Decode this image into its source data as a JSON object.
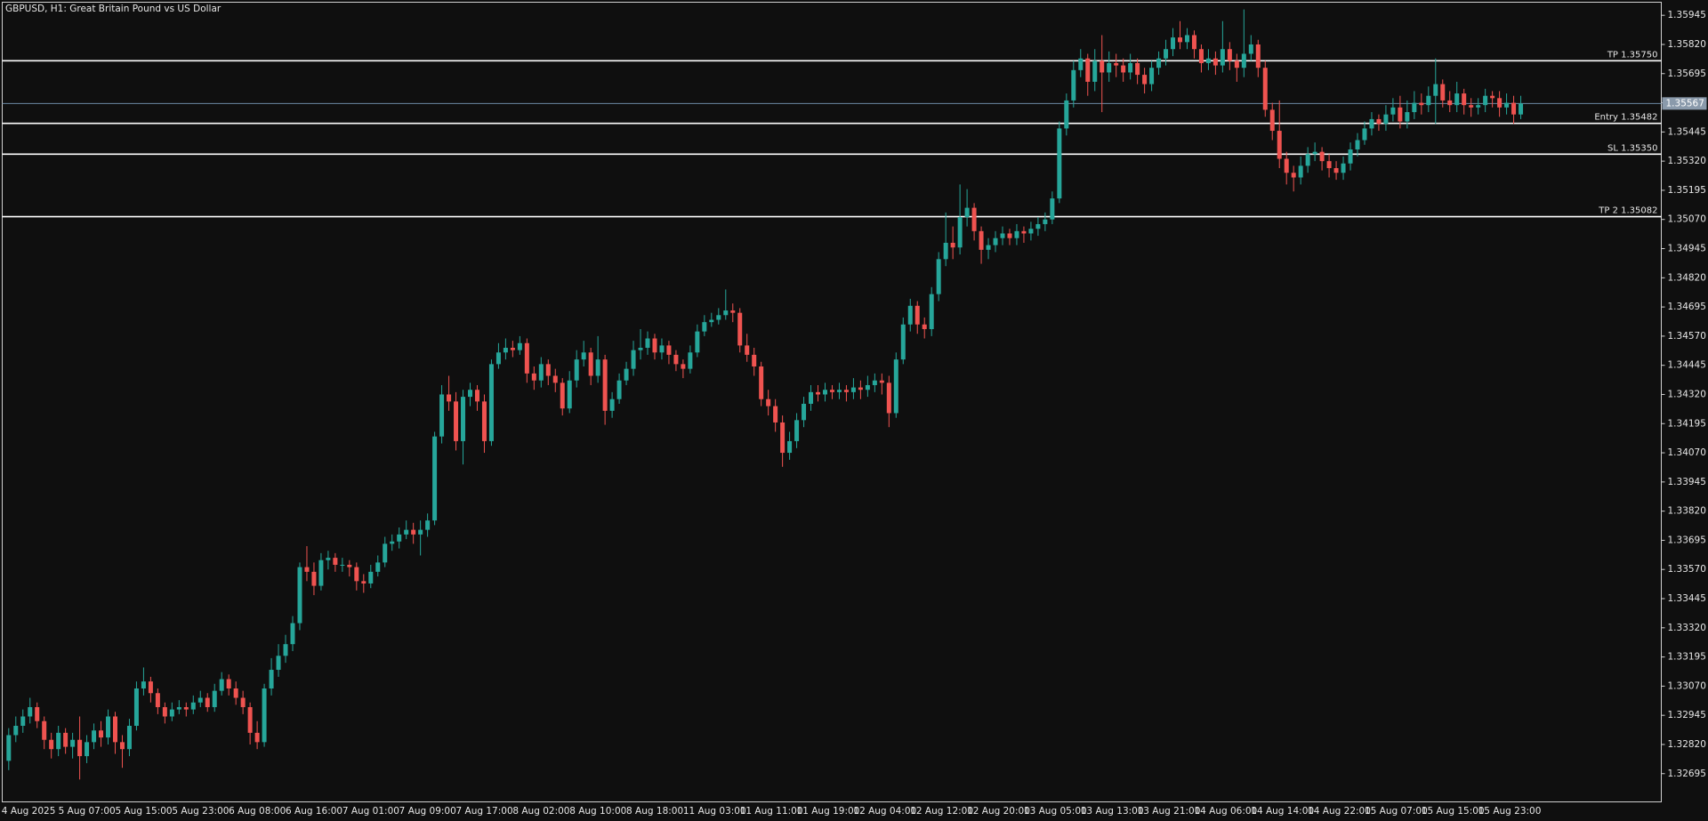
{
  "chart_data": {
    "type": "candlestick",
    "title": "GBPUSD, H1:  Great Britain Pound vs US Dollar",
    "up_color": "#26a69a",
    "down_color": "#ef5350",
    "x": [
      "4 Aug 2025",
      null,
      null,
      null,
      null,
      null,
      null,
      null,
      "5 Aug 07:00",
      null,
      null,
      null,
      null,
      null,
      null,
      null,
      "5 Aug 15:00",
      null,
      null,
      null,
      null,
      null,
      null,
      null,
      "5 Aug 23:00",
      null,
      null,
      null,
      null,
      null,
      null,
      null,
      "6 Aug 08:00",
      null,
      null,
      null,
      null,
      null,
      null,
      null,
      "6 Aug 16:00",
      null,
      null,
      null,
      null,
      null,
      null,
      null,
      "7 Aug 01:00",
      null,
      null,
      null,
      null,
      null,
      null,
      null,
      "7 Aug 09:00",
      null,
      null,
      null,
      null,
      null,
      null,
      null,
      "7 Aug 17:00",
      null,
      null,
      null,
      null,
      null,
      null,
      null,
      "8 Aug 02:00",
      null,
      null,
      null,
      null,
      null,
      null,
      null,
      "8 Aug 10:00",
      null,
      null,
      null,
      null,
      null,
      null,
      null,
      "8 Aug 18:00",
      null,
      null,
      null,
      null,
      null,
      null,
      null,
      "11 Aug 03:00",
      null,
      null,
      null,
      null,
      null,
      null,
      null,
      "11 Aug 11:00",
      null,
      null,
      null,
      null,
      null,
      null,
      null,
      "11 Aug 19:00",
      null,
      null,
      null,
      null,
      null,
      null,
      null,
      "12 Aug 04:00",
      null,
      null,
      null,
      null,
      null,
      null,
      null,
      "12 Aug 12:00",
      null,
      null,
      null,
      null,
      null,
      null,
      null,
      "12 Aug 20:00",
      null,
      null,
      null,
      null,
      null,
      null,
      null,
      "13 Aug 05:00",
      null,
      null,
      null,
      null,
      null,
      null,
      null,
      "13 Aug 13:00",
      null,
      null,
      null,
      null,
      null,
      null,
      null,
      "13 Aug 21:00",
      null,
      null,
      null,
      null,
      null,
      null,
      null,
      "14 Aug 06:00",
      null,
      null,
      null,
      null,
      null,
      null,
      null,
      "14 Aug 14:00",
      null,
      null,
      null,
      null,
      null,
      null,
      null,
      "14 Aug 22:00",
      null,
      null,
      null,
      null,
      null,
      null,
      null,
      "15 Aug 07:00",
      null,
      null,
      null,
      null,
      null,
      null,
      null,
      "15 Aug 15:00",
      null,
      null,
      null,
      null,
      null,
      null,
      null,
      "15 Aug 23:00",
      null,
      null,
      null,
      null,
      null
    ],
    "open": [
      1.3275,
      1.3286,
      1.329,
      1.3294,
      1.3298,
      1.3292,
      1.3284,
      1.328,
      1.3287,
      1.3281,
      1.3284,
      1.3277,
      1.3283,
      1.3288,
      1.3285,
      1.3294,
      1.3283,
      1.328,
      1.329,
      1.3306,
      1.3309,
      1.3304,
      1.3298,
      1.3294,
      1.3297,
      1.3298,
      1.3297,
      1.33,
      1.3302,
      1.3298,
      1.3305,
      1.331,
      1.3306,
      1.3302,
      1.3298,
      1.3287,
      1.3283,
      1.3306,
      1.3314,
      1.332,
      1.3325,
      1.3334,
      1.3358,
      1.3356,
      1.335,
      1.3361,
      1.3362,
      1.3359,
      1.3359,
      1.3358,
      1.3352,
      1.3351,
      1.3356,
      1.336,
      1.3368,
      1.3369,
      1.3372,
      1.3374,
      1.3372,
      1.3374,
      1.3378,
      1.3414,
      1.3432,
      1.3429,
      1.3412,
      1.3431,
      1.3434,
      1.3429,
      1.3412,
      1.3445,
      1.345,
      1.3452,
      1.3451,
      1.3454,
      1.3441,
      1.3438,
      1.3445,
      1.344,
      1.3437,
      1.3426,
      1.3438,
      1.3447,
      1.345,
      1.344,
      1.3447,
      1.3425,
      1.343,
      1.3438,
      1.3443,
      1.3451,
      1.3452,
      1.3456,
      1.345,
      1.3453,
      1.3449,
      1.3445,
      1.3443,
      1.345,
      1.3459,
      1.3463,
      1.3464,
      1.3466,
      1.3468,
      1.3467,
      1.3453,
      1.3449,
      1.3444,
      1.343,
      1.3427,
      1.342,
      1.3407,
      1.3412,
      1.3421,
      1.3428,
      1.3433,
      1.3432,
      1.3434,
      1.3433,
      1.3434,
      1.3433,
      1.3435,
      1.3434,
      1.3436,
      1.3438,
      1.3437,
      1.3424,
      1.3447,
      1.3462,
      1.347,
      1.3462,
      1.346,
      1.3475,
      1.349,
      1.3497,
      1.3495,
      1.3508,
      1.3512,
      1.3502,
      1.3494,
      1.3496,
      1.3499,
      1.3501,
      1.3499,
      1.3502,
      1.3501,
      1.3503,
      1.3505,
      1.3507,
      1.3516,
      1.3546,
      1.3558,
      1.3571,
      1.3576,
      1.3566,
      1.3575,
      1.357,
      1.3574,
      1.3573,
      1.357,
      1.3574,
      1.3569,
      1.3565,
      1.3572,
      1.3576,
      1.358,
      1.3585,
      1.3583,
      1.3586,
      1.358,
      1.3574,
      1.3576,
      1.3573,
      1.358,
      1.3575,
      1.3572,
      1.3578,
      1.3582,
      1.3572,
      1.3554,
      1.3545,
      1.3533,
      1.3527,
      1.3525,
      1.353,
      1.3535,
      1.3536,
      1.3532,
      1.3529,
      1.3527,
      1.3531,
      1.3537,
      1.3541,
      1.3546,
      1.355,
      1.3548,
      1.3552,
      1.3555,
      1.3549,
      1.3553,
      1.3557,
      1.3556,
      1.356,
      1.3565,
      1.3558,
      1.3556,
      1.3561,
      1.3556,
      1.3555,
      1.3556,
      1.356,
      1.3559,
      1.3555,
      1.3557,
      1.3552
    ],
    "high": [
      1.3289,
      1.3294,
      1.3297,
      1.3302,
      1.33,
      1.3294,
      1.3287,
      1.329,
      1.3289,
      1.3287,
      1.3294,
      1.3286,
      1.3291,
      1.3292,
      1.3297,
      1.3296,
      1.3286,
      1.3293,
      1.3309,
      1.3315,
      1.3311,
      1.3306,
      1.33,
      1.33,
      1.3301,
      1.33,
      1.3303,
      1.3305,
      1.3304,
      1.3308,
      1.3313,
      1.3312,
      1.3309,
      1.3305,
      1.33,
      1.3292,
      1.3308,
      1.3319,
      1.3325,
      1.3329,
      1.3337,
      1.336,
      1.3367,
      1.336,
      1.3364,
      1.3365,
      1.3364,
      1.3362,
      1.3361,
      1.336,
      1.3355,
      1.3359,
      1.3363,
      1.3371,
      1.3372,
      1.3375,
      1.3378,
      1.3377,
      1.3378,
      1.3381,
      1.3416,
      1.3436,
      1.344,
      1.3433,
      1.3434,
      1.3437,
      1.3436,
      1.3432,
      1.3447,
      1.3454,
      1.3456,
      1.3455,
      1.3457,
      1.3456,
      1.3444,
      1.3448,
      1.3447,
      1.3443,
      1.3439,
      1.3442,
      1.3451,
      1.3455,
      1.3452,
      1.3457,
      1.3449,
      1.3433,
      1.3441,
      1.3446,
      1.3455,
      1.346,
      1.3459,
      1.3458,
      1.3456,
      1.3455,
      1.3451,
      1.3447,
      1.3453,
      1.3462,
      1.3466,
      1.3467,
      1.3469,
      1.3477,
      1.3471,
      1.3469,
      1.3458,
      1.3452,
      1.3446,
      1.3434,
      1.343,
      1.3423,
      1.3416,
      1.3424,
      1.3431,
      1.3436,
      1.3436,
      1.3437,
      1.3436,
      1.3437,
      1.3436,
      1.3439,
      1.3438,
      1.344,
      1.3441,
      1.3441,
      1.344,
      1.345,
      1.3465,
      1.3473,
      1.3472,
      1.3465,
      1.3478,
      1.3493,
      1.351,
      1.3504,
      1.3522,
      1.352,
      1.3514,
      1.3504,
      1.3499,
      1.3502,
      1.3504,
      1.3503,
      1.3505,
      1.3504,
      1.3506,
      1.3508,
      1.351,
      1.3519,
      1.3549,
      1.3561,
      1.3575,
      1.358,
      1.3578,
      1.358,
      1.3586,
      1.3579,
      1.3578,
      1.3576,
      1.3578,
      1.3576,
      1.3572,
      1.3575,
      1.3579,
      1.3584,
      1.3589,
      1.3592,
      1.3589,
      1.3588,
      1.3582,
      1.358,
      1.3579,
      1.3592,
      1.3583,
      1.3578,
      1.3597,
      1.3586,
      1.3584,
      1.3575,
      1.3557,
      1.3558,
      1.3536,
      1.353,
      1.3534,
      1.3538,
      1.354,
      1.3538,
      1.3535,
      1.3532,
      1.3534,
      1.354,
      1.3544,
      1.3549,
      1.3553,
      1.3552,
      1.3556,
      1.3559,
      1.356,
      1.3558,
      1.3562,
      1.3561,
      1.3564,
      1.3576,
      1.3567,
      1.3562,
      1.3566,
      1.3563,
      1.3559,
      1.3559,
      1.3563,
      1.3562,
      1.3562,
      1.3561,
      1.356,
      1.356
    ],
    "low": [
      1.3271,
      1.3283,
      1.3287,
      1.3291,
      1.3289,
      1.328,
      1.3276,
      1.3277,
      1.3278,
      1.3276,
      1.3267,
      1.3274,
      1.328,
      1.3281,
      1.3282,
      1.3278,
      1.3272,
      1.3277,
      1.3288,
      1.3303,
      1.33,
      1.3295,
      1.3291,
      1.3292,
      1.3295,
      1.3294,
      1.3295,
      1.3298,
      1.3296,
      1.3296,
      1.3303,
      1.3303,
      1.3299,
      1.3295,
      1.3282,
      1.328,
      1.3281,
      1.3303,
      1.3311,
      1.3317,
      1.3322,
      1.3331,
      1.3352,
      1.3346,
      1.3348,
      1.3357,
      1.3356,
      1.3356,
      1.3354,
      1.3348,
      1.3347,
      1.3349,
      1.3354,
      1.3358,
      1.3365,
      1.3366,
      1.337,
      1.3368,
      1.3363,
      1.3371,
      1.3376,
      1.3411,
      1.3425,
      1.3408,
      1.3402,
      1.3427,
      1.3425,
      1.3407,
      1.341,
      1.3443,
      1.3447,
      1.3448,
      1.3449,
      1.3437,
      1.3434,
      1.3435,
      1.3436,
      1.3433,
      1.3423,
      1.3424,
      1.3435,
      1.3444,
      1.3436,
      1.3437,
      1.3419,
      1.3422,
      1.3428,
      1.3436,
      1.344,
      1.3447,
      1.3449,
      1.3447,
      1.3447,
      1.3445,
      1.3442,
      1.3439,
      1.3441,
      1.3448,
      1.3457,
      1.3461,
      1.3462,
      1.3464,
      1.3463,
      1.345,
      1.3446,
      1.344,
      1.3427,
      1.3423,
      1.3416,
      1.3401,
      1.3404,
      1.3409,
      1.3418,
      1.3425,
      1.3429,
      1.3429,
      1.343,
      1.343,
      1.3429,
      1.343,
      1.343,
      1.3431,
      1.3433,
      1.3432,
      1.3418,
      1.3422,
      1.3445,
      1.3459,
      1.3458,
      1.3456,
      1.3457,
      1.3472,
      1.3487,
      1.349,
      1.3492,
      1.3504,
      1.3498,
      1.3488,
      1.349,
      1.3493,
      1.3496,
      1.3496,
      1.3496,
      1.3497,
      1.3498,
      1.35,
      1.3502,
      1.3505,
      1.3514,
      1.3543,
      1.3555,
      1.3568,
      1.356,
      1.3562,
      1.3553,
      1.3566,
      1.3568,
      1.3566,
      1.3567,
      1.3565,
      1.3561,
      1.3562,
      1.3569,
      1.3573,
      1.3577,
      1.358,
      1.358,
      1.3576,
      1.357,
      1.3571,
      1.3569,
      1.357,
      1.3571,
      1.3566,
      1.3568,
      1.3575,
      1.3568,
      1.3551,
      1.3541,
      1.3529,
      1.3522,
      1.3519,
      1.3522,
      1.3527,
      1.3532,
      1.3528,
      1.3525,
      1.3524,
      1.3524,
      1.3528,
      1.3534,
      1.3539,
      1.3543,
      1.3545,
      1.3545,
      1.3549,
      1.3546,
      1.3546,
      1.355,
      1.3552,
      1.3553,
      1.3548,
      1.3555,
      1.3553,
      1.3553,
      1.3552,
      1.3551,
      1.3552,
      1.3553,
      1.3555,
      1.3551,
      1.3552,
      1.3548,
      1.355
    ],
    "close": [
      1.3286,
      1.329,
      1.3294,
      1.3298,
      1.3292,
      1.3284,
      1.328,
      1.3287,
      1.3281,
      1.3284,
      1.3277,
      1.3283,
      1.3288,
      1.3285,
      1.3294,
      1.3283,
      1.328,
      1.329,
      1.3306,
      1.3309,
      1.3304,
      1.3298,
      1.3294,
      1.3297,
      1.3298,
      1.3297,
      1.33,
      1.3302,
      1.3298,
      1.3305,
      1.331,
      1.3306,
      1.3302,
      1.3298,
      1.3287,
      1.3283,
      1.3306,
      1.3314,
      1.332,
      1.3325,
      1.3334,
      1.3358,
      1.3356,
      1.335,
      1.3361,
      1.3362,
      1.3359,
      1.3359,
      1.3358,
      1.3352,
      1.3351,
      1.3356,
      1.336,
      1.3368,
      1.3369,
      1.3372,
      1.3374,
      1.3372,
      1.3374,
      1.3378,
      1.3414,
      1.3432,
      1.3429,
      1.3412,
      1.3431,
      1.3434,
      1.3429,
      1.3412,
      1.3445,
      1.345,
      1.3452,
      1.3451,
      1.3454,
      1.3441,
      1.3438,
      1.3445,
      1.344,
      1.3437,
      1.3426,
      1.3438,
      1.3447,
      1.345,
      1.344,
      1.3447,
      1.3425,
      1.343,
      1.3438,
      1.3443,
      1.3451,
      1.3452,
      1.3456,
      1.345,
      1.3453,
      1.3449,
      1.3445,
      1.3443,
      1.345,
      1.3459,
      1.3463,
      1.3464,
      1.3466,
      1.3468,
      1.3467,
      1.3453,
      1.3449,
      1.3444,
      1.343,
      1.3427,
      1.342,
      1.3407,
      1.3412,
      1.3421,
      1.3428,
      1.3433,
      1.3432,
      1.3434,
      1.3433,
      1.3434,
      1.3433,
      1.3435,
      1.3434,
      1.3436,
      1.3438,
      1.3437,
      1.3424,
      1.3447,
      1.3462,
      1.347,
      1.3462,
      1.346,
      1.3475,
      1.349,
      1.3497,
      1.3495,
      1.3508,
      1.3512,
      1.3502,
      1.3494,
      1.3496,
      1.3499,
      1.3501,
      1.3499,
      1.3502,
      1.3501,
      1.3503,
      1.3505,
      1.3507,
      1.3516,
      1.3546,
      1.3558,
      1.3571,
      1.3576,
      1.3566,
      1.3575,
      1.357,
      1.3574,
      1.3573,
      1.357,
      1.3574,
      1.3569,
      1.3565,
      1.3572,
      1.3576,
      1.358,
      1.3585,
      1.3583,
      1.3586,
      1.358,
      1.3574,
      1.3576,
      1.3573,
      1.358,
      1.3575,
      1.3572,
      1.3578,
      1.3582,
      1.3572,
      1.3554,
      1.3545,
      1.3533,
      1.3527,
      1.3525,
      1.353,
      1.3535,
      1.3536,
      1.3532,
      1.3529,
      1.3527,
      1.3531,
      1.3537,
      1.3541,
      1.3546,
      1.355,
      1.3548,
      1.3552,
      1.3555,
      1.3549,
      1.3553,
      1.3557,
      1.3556,
      1.356,
      1.3565,
      1.3558,
      1.3556,
      1.3561,
      1.3556,
      1.3555,
      1.3556,
      1.356,
      1.3559,
      1.3555,
      1.3557,
      1.3552,
      1.35567
    ],
    "ylim": [
      1.32574,
      1.36001
    ],
    "yticks": [
      1.35945,
      {
        "value": 1.3582,
        "label": "1.35820"
      },
      1.35695,
      {
        "value": 1.3557,
        "label": "1.35570"
      },
      1.35445,
      {
        "value": 1.3532,
        "label": "1.35320"
      },
      1.35195,
      {
        "value": 1.3507,
        "label": "1.35070"
      },
      1.34945,
      {
        "value": 1.3482,
        "label": "1.34820"
      },
      1.34695,
      {
        "value": 1.3457,
        "label": "1.34570"
      },
      1.34445,
      {
        "value": 1.3432,
        "label": "1.34320"
      },
      1.34195,
      {
        "value": 1.3407,
        "label": "1.34070"
      },
      1.33945,
      {
        "value": 1.3382,
        "label": "1.33820"
      },
      1.33695,
      {
        "value": 1.3357,
        "label": "1.33570"
      },
      1.33445,
      {
        "value": 1.3332,
        "label": "1.33320"
      },
      1.33195,
      {
        "value": 1.3307,
        "label": "1.33070"
      },
      1.32945,
      {
        "value": 1.3282,
        "label": "1.32820"
      },
      1.32695
    ],
    "levels": [
      {
        "label": "TP 1.35750",
        "value": 1.3575
      },
      {
        "label": "Entry 1.35482",
        "value": 1.35482
      },
      {
        "label": "SL 1.35350",
        "value": 1.3535
      },
      {
        "label": "TP 2 1.35082",
        "value": 1.35082
      }
    ],
    "current_price": 1.35567
  }
}
